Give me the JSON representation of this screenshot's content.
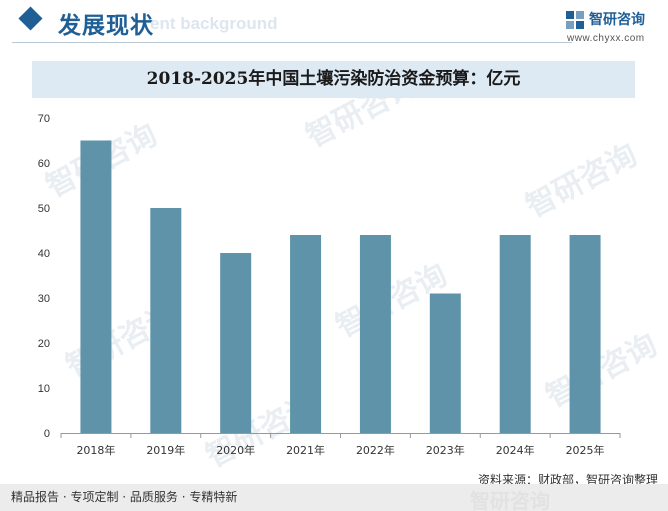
{
  "header": {
    "title": "发展现状",
    "ghost_text": "ent background"
  },
  "logo": {
    "name": "智研咨询",
    "url": "www.chyxx.com"
  },
  "watermark": {
    "text": "智研咨询"
  },
  "chart_data": {
    "type": "bar",
    "title": "2018-2025年中国土壤污染防治资金预算：亿元",
    "xlabel": "",
    "ylabel": "",
    "categories": [
      "2018年",
      "2019年",
      "2020年",
      "2021年",
      "2022年",
      "2023年",
      "2024年",
      "2025年"
    ],
    "values": [
      65,
      50,
      40,
      44,
      44,
      31,
      44,
      44
    ],
    "ylim": [
      0,
      70
    ],
    "yticks": [
      0,
      10,
      20,
      30,
      40,
      50,
      60,
      70
    ],
    "grid": false,
    "bar_color": "#5f93a9"
  },
  "source": "资料来源：财政部，智研咨询整理",
  "footer": {
    "text": "精品报告 · 专项定制 · 品质服务 · 专精特新",
    "ghost_text": "智研咨询"
  }
}
